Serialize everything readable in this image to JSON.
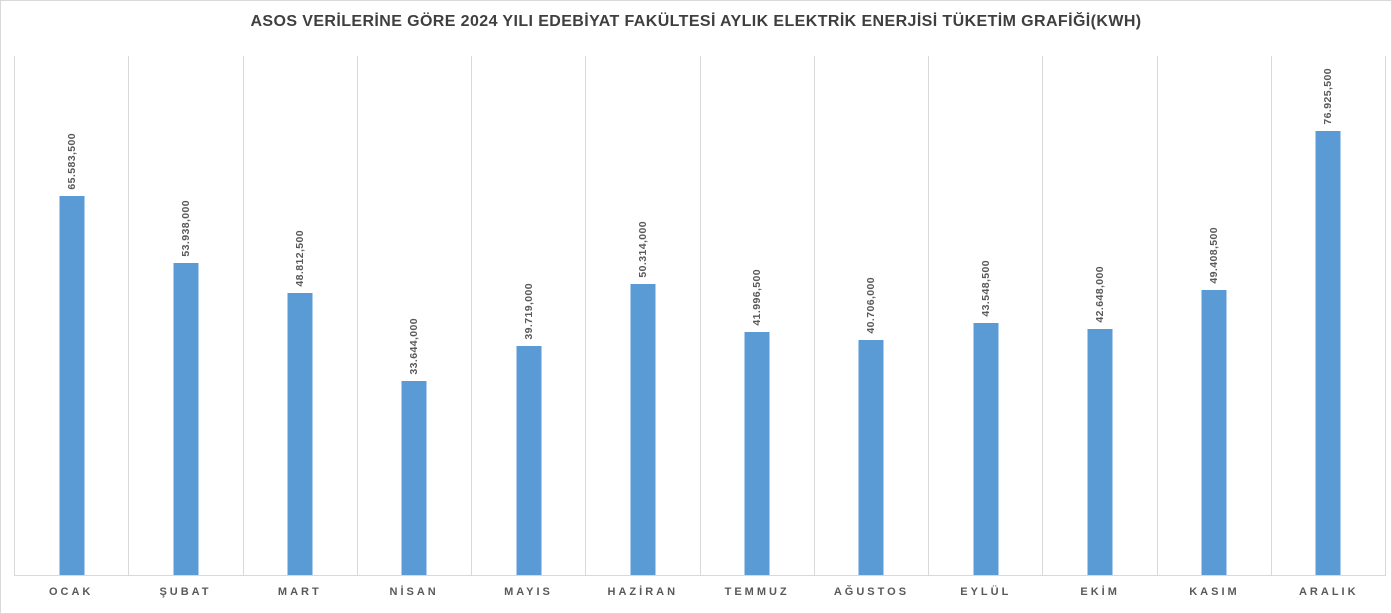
{
  "title": "ASOS VERİLERİNE GÖRE 2024 YILI EDEBİYAT FAKÜLTESİ AYLIK ELEKTRİK ENERJİSİ TÜKETİM GRAFİĞİ(KWH)",
  "colors": {
    "bar": "#5B9BD5",
    "gridline": "#D9D9D9",
    "axis_line": "#D9D9D9",
    "title_text": "#3F3F3F",
    "label_text": "#595959",
    "background": "#FFFFFF"
  },
  "chart_data": {
    "type": "bar",
    "title": "ASOS VERİLERİNE GÖRE 2024 YILI EDEBİYAT FAKÜLTESİ AYLIK ELEKTRİK ENERJİSİ TÜKETİM GRAFİĞİ(KWH)",
    "unit": "KWH",
    "categories": [
      "OCAK",
      "ŞUBAT",
      "MART",
      "NİSAN",
      "MAYIS",
      "HAZİRAN",
      "TEMMUZ",
      "AĞUSTOS",
      "EYLÜL",
      "EKİM",
      "KASIM",
      "ARALIK"
    ],
    "values": [
      65583.5,
      53938.0,
      48812.5,
      33644.0,
      39719.0,
      50314.0,
      41996.5,
      40706.0,
      43548.5,
      42648.0,
      49408.5,
      76925.5
    ],
    "value_labels": [
      "65.583,500",
      "53.938,000",
      "48.812,500",
      "33.644,000",
      "39.719,000",
      "50.314,000",
      "41.996,500",
      "40.706,000",
      "43.548,500",
      "42.648,000",
      "49.408,500",
      "76.925,500"
    ],
    "xlabel": "",
    "ylabel": "",
    "ylim": [
      0,
      90000
    ],
    "y_axis_visible": false,
    "grid": "vertical-category-separators",
    "legend": "none",
    "data_label_rotation": 90
  }
}
